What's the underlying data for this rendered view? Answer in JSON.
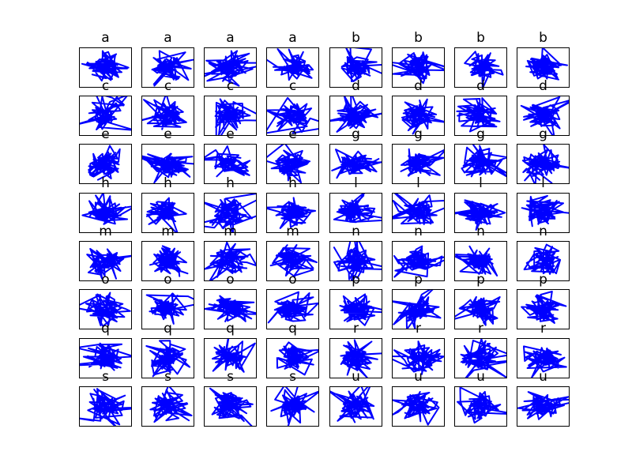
{
  "chart_data": {
    "type": "line",
    "layout": {
      "rows": 8,
      "cols": 8
    },
    "series_color": "#0000ff",
    "axes_visible": false,
    "grid": false,
    "legend": "none",
    "note": "",
    "panels": [
      {
        "title": "a"
      },
      {
        "title": "a"
      },
      {
        "title": "a"
      },
      {
        "title": "a"
      },
      {
        "title": "b"
      },
      {
        "title": "b"
      },
      {
        "title": "b"
      },
      {
        "title": "b"
      },
      {
        "title": "c"
      },
      {
        "title": "c"
      },
      {
        "title": "c"
      },
      {
        "title": "c"
      },
      {
        "title": "d"
      },
      {
        "title": "d"
      },
      {
        "title": "d"
      },
      {
        "title": "d"
      },
      {
        "title": "e"
      },
      {
        "title": "e"
      },
      {
        "title": "e"
      },
      {
        "title": "e"
      },
      {
        "title": "g"
      },
      {
        "title": "g"
      },
      {
        "title": "g"
      },
      {
        "title": "g"
      },
      {
        "title": "h"
      },
      {
        "title": "h"
      },
      {
        "title": "h"
      },
      {
        "title": "h"
      },
      {
        "title": "l"
      },
      {
        "title": "l"
      },
      {
        "title": "l"
      },
      {
        "title": "l"
      },
      {
        "title": "m"
      },
      {
        "title": "m"
      },
      {
        "title": "m"
      },
      {
        "title": "m"
      },
      {
        "title": "n"
      },
      {
        "title": "n"
      },
      {
        "title": "n"
      },
      {
        "title": "n"
      },
      {
        "title": "o"
      },
      {
        "title": "o"
      },
      {
        "title": "o"
      },
      {
        "title": "o"
      },
      {
        "title": "p"
      },
      {
        "title": "p"
      },
      {
        "title": "p"
      },
      {
        "title": "p"
      },
      {
        "title": "q"
      },
      {
        "title": "q"
      },
      {
        "title": "q"
      },
      {
        "title": "q"
      },
      {
        "title": "r"
      },
      {
        "title": "r"
      },
      {
        "title": "r"
      },
      {
        "title": "r"
      },
      {
        "title": "s"
      },
      {
        "title": "s"
      },
      {
        "title": "s"
      },
      {
        "title": "s"
      },
      {
        "title": "u"
      },
      {
        "title": "u"
      },
      {
        "title": "u"
      },
      {
        "title": "u"
      }
    ]
  }
}
